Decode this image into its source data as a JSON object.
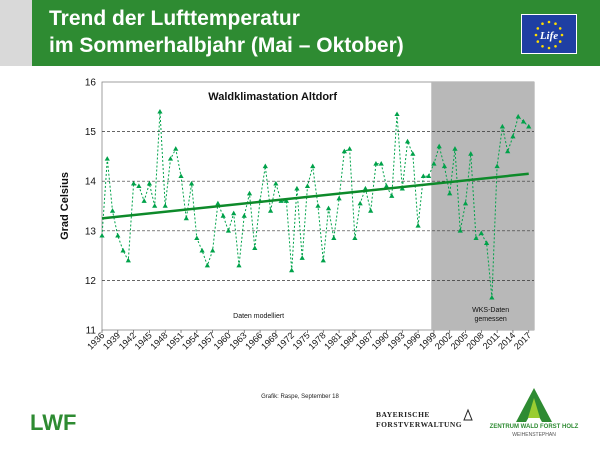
{
  "header": {
    "title_line1": "Trend der Lufttemperatur",
    "title_line2": "im Sommerhalbjahr (Mai – Oktober)",
    "eu_logo_text": "Life",
    "colors": {
      "band": "#2e8b32",
      "title": "#ffffff"
    }
  },
  "chart_data": {
    "type": "line",
    "title": "Waldklimastation Altdorf",
    "ylabel": "Grad Celsius",
    "xlabel": "",
    "ylim": [
      11,
      16
    ],
    "yticks": [
      11,
      12,
      13,
      14,
      15,
      16
    ],
    "xlim": [
      1936,
      2017
    ],
    "xticks": [
      1936,
      1939,
      1942,
      1945,
      1948,
      1951,
      1954,
      1957,
      1960,
      1963,
      1966,
      1969,
      1972,
      1975,
      1978,
      1981,
      1984,
      1987,
      1990,
      1993,
      1996,
      1999,
      2002,
      2005,
      2008,
      2011,
      2014,
      2017
    ],
    "grid": "horizontal dashed",
    "series": [
      {
        "years": [
          1936,
          1937,
          1938,
          1939,
          1940,
          1941,
          1942,
          1943,
          1944,
          1945,
          1946,
          1947,
          1948,
          1949,
          1950,
          1951,
          1952,
          1953,
          1954,
          1955,
          1956,
          1957,
          1958,
          1959,
          1960,
          1961,
          1962,
          1963,
          1964,
          1965,
          1966,
          1967,
          1968,
          1969,
          1970,
          1971,
          1972,
          1973,
          1974,
          1975,
          1976,
          1977,
          1978,
          1979,
          1980,
          1981,
          1982,
          1983,
          1984,
          1985,
          1986,
          1987,
          1988,
          1989,
          1990,
          1991,
          1992,
          1993,
          1994,
          1995,
          1996,
          1997,
          1998,
          1999,
          2000,
          2001,
          2002,
          2003,
          2004,
          2005,
          2006,
          2007,
          2008,
          2009,
          2010,
          2011,
          2012,
          2013,
          2014,
          2015,
          2016,
          2017
        ],
        "values": [
          12.9,
          14.45,
          13.4,
          12.9,
          12.6,
          12.4,
          13.95,
          13.9,
          13.6,
          13.95,
          13.5,
          15.4,
          13.5,
          14.45,
          14.65,
          14.1,
          13.25,
          13.95,
          12.85,
          12.6,
          12.3,
          12.6,
          13.55,
          13.3,
          13.0,
          13.35,
          12.3,
          13.3,
          13.75,
          12.65,
          13.6,
          14.3,
          13.4,
          13.95,
          13.6,
          13.6,
          12.2,
          13.85,
          12.45,
          13.9,
          14.3,
          13.5,
          12.4,
          13.45,
          12.85,
          13.65,
          14.6,
          14.65,
          12.85,
          13.55,
          13.85,
          13.4,
          14.35,
          14.35,
          13.9,
          13.7,
          15.35,
          13.85,
          14.8,
          14.55,
          13.1,
          14.1,
          14.1,
          14.35,
          14.7,
          14.3,
          13.75,
          14.65,
          13.0,
          13.55,
          14.55,
          12.85,
          12.95,
          12.75,
          11.65,
          14.3,
          15.1,
          14.6,
          14.9,
          15.3,
          15.2,
          15.1
        ],
        "color": "#00a24a"
      }
    ],
    "trend": {
      "x": [
        1936,
        2017
      ],
      "y": [
        13.25,
        14.15
      ],
      "color": "#0d8a2a"
    },
    "shaded_region": {
      "from": 1998.5,
      "to": 2018,
      "color": "#b8b8b8"
    },
    "annotations": {
      "modelled": "Daten modelliert",
      "measured_line1": "WKS-Daten",
      "measured_line2": "gemessen"
    }
  },
  "footer": {
    "credit": "Grafik: Raspe, September 18",
    "lwf_logo": "LWF",
    "bayerische_line1": "BAYERISCHE",
    "bayerische_line2": "FORSTVERWALTUNG",
    "zwfh_line1": "ZENTRUM WALD FORST HOLZ",
    "zwfh_line2": "WEIHENSTEPHAN"
  }
}
